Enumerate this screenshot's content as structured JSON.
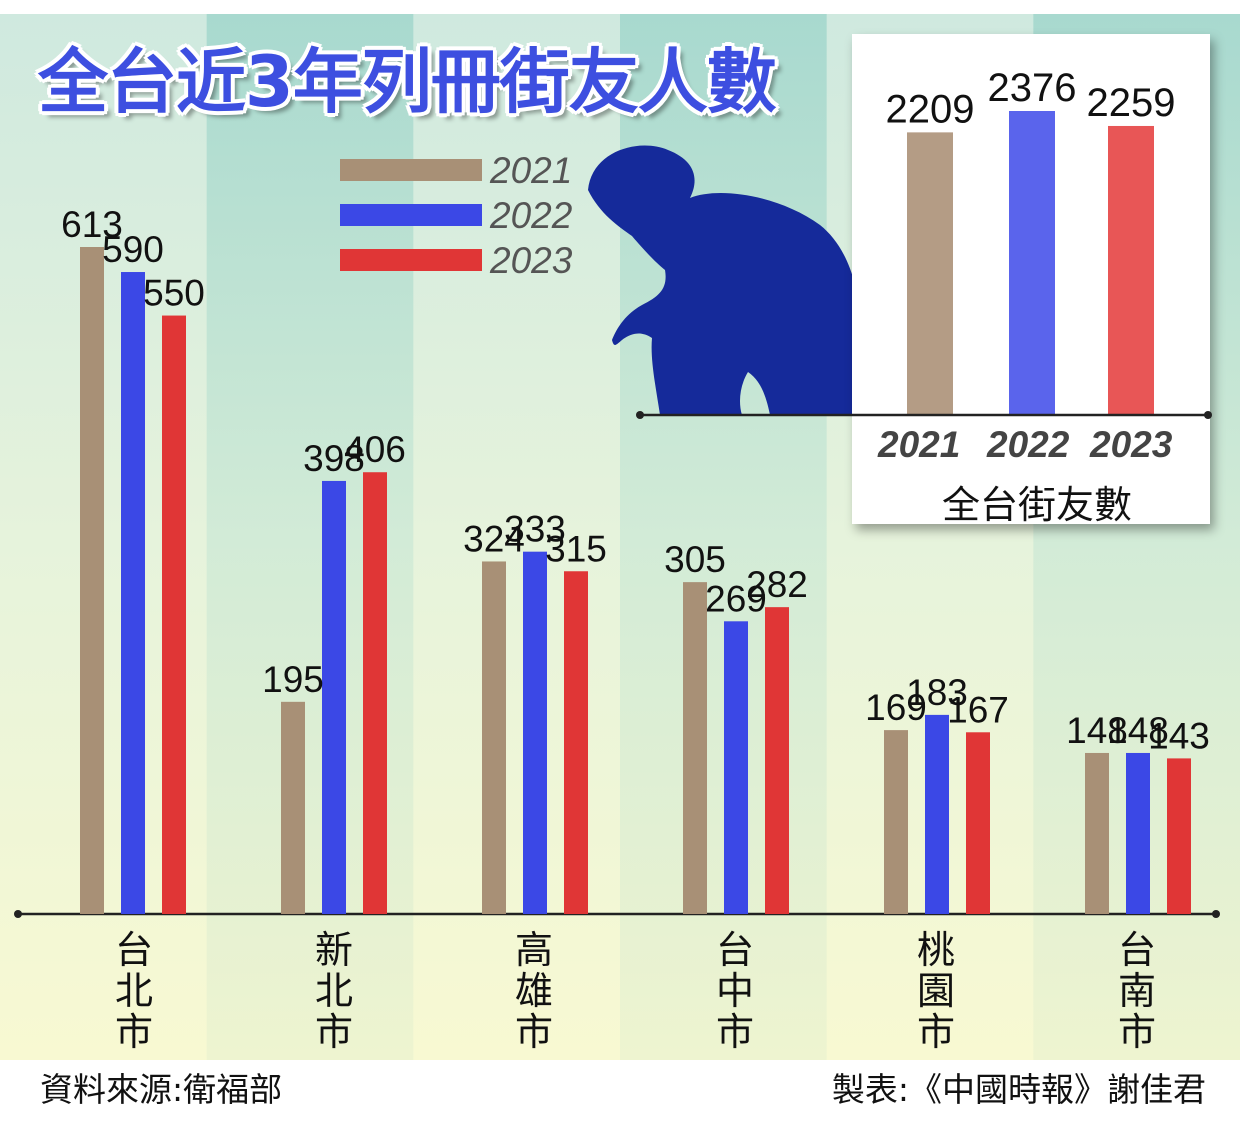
{
  "chart_data": [
    {
      "type": "bar",
      "title": "全台近3年列冊街友人數",
      "categories": [
        "台北市",
        "新北市",
        "高雄市",
        "台中市",
        "桃園市",
        "台南市"
      ],
      "series": [
        {
          "name": "2021",
          "color": "#a89076",
          "values": [
            613,
            195,
            324,
            305,
            169,
            148
          ]
        },
        {
          "name": "2022",
          "color": "#3b48e6",
          "values": [
            590,
            398,
            333,
            269,
            183,
            148
          ]
        },
        {
          "name": "2023",
          "color": "#e03636",
          "values": [
            550,
            406,
            315,
            282,
            167,
            143
          ]
        }
      ],
      "ylim": [
        0,
        700
      ],
      "grid": false,
      "legend_position": "top-center"
    },
    {
      "type": "bar",
      "xlabel": "全台街友數",
      "categories": [
        "2021",
        "2022",
        "2023"
      ],
      "values": [
        2209,
        2376,
        2259
      ],
      "colors": [
        "#b49c85",
        "#5a64ec",
        "#e85656"
      ],
      "ylim": [
        0,
        2800
      ],
      "grid": false,
      "legend_position": "none"
    }
  ],
  "source_label": "資料來源:衛福部",
  "credit_label": "製表:《中國時報》謝佳君",
  "silhouette_color": "#152a9a"
}
